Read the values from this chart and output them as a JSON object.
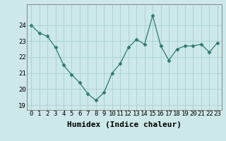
{
  "x": [
    0,
    1,
    2,
    3,
    4,
    5,
    6,
    7,
    8,
    9,
    10,
    11,
    12,
    13,
    14,
    15,
    16,
    17,
    18,
    19,
    20,
    21,
    22,
    23
  ],
  "y": [
    24.0,
    23.5,
    23.3,
    22.6,
    21.5,
    20.9,
    20.4,
    19.7,
    19.3,
    19.8,
    21.0,
    21.6,
    22.6,
    23.1,
    22.8,
    24.6,
    22.7,
    21.8,
    22.5,
    22.7,
    22.7,
    22.8,
    22.3,
    22.9
  ],
  "line_color": "#2d7a6e",
  "marker": "D",
  "marker_size": 2.5,
  "bg_color": "#cce8e8",
  "grid_color": "#aad0d0",
  "xlabel": "Humidex (Indice chaleur)",
  "ylim": [
    18.7,
    25.3
  ],
  "xlim": [
    -0.5,
    23.5
  ],
  "yticks": [
    19,
    20,
    21,
    22,
    23,
    24
  ],
  "xticks": [
    0,
    1,
    2,
    3,
    4,
    5,
    6,
    7,
    8,
    9,
    10,
    11,
    12,
    13,
    14,
    15,
    16,
    17,
    18,
    19,
    20,
    21,
    22,
    23
  ],
  "tick_fontsize": 6.5,
  "xlabel_fontsize": 8.0,
  "spine_color": "#888888",
  "linewidth": 0.9
}
